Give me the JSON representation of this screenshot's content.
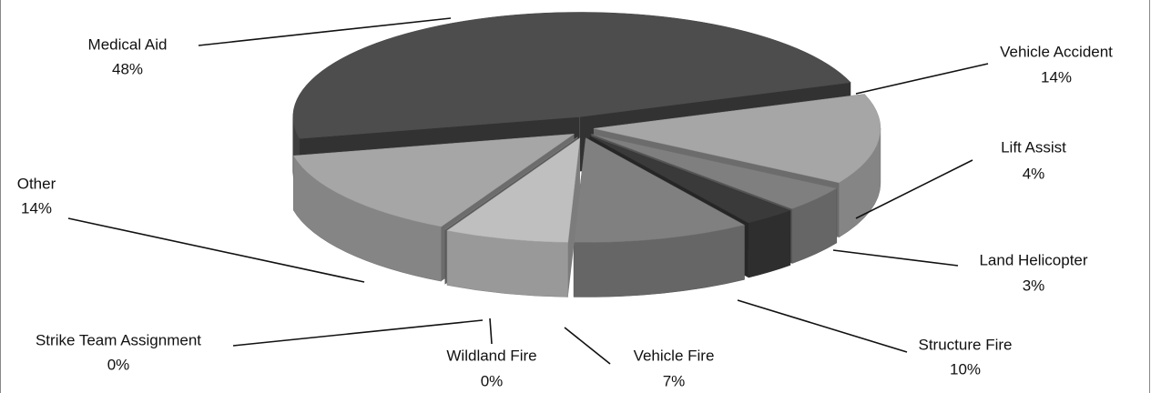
{
  "chart_data": {
    "type": "pie",
    "categories": [
      "Medical Aid",
      "Vehicle Accident",
      "Lift Assist",
      "Land Helicopter",
      "Structure Fire",
      "Vehicle Fire",
      "Wildland Fire",
      "Strike Team Assignment",
      "Other"
    ],
    "values": [
      48,
      14,
      4,
      3,
      10,
      7,
      0,
      0,
      14
    ],
    "value_labels": [
      "48%",
      "14%",
      "4%",
      "3%",
      "10%",
      "7%",
      "0%",
      "0%",
      "14%"
    ],
    "colors": [
      "#4d4d4d",
      "#a6a6a6",
      "#7f7f7f",
      "#3a3a3a",
      "#808080",
      "#bfbfbf",
      "#9a9a9a",
      "#8c8c8c",
      "#a6a6a6"
    ]
  }
}
